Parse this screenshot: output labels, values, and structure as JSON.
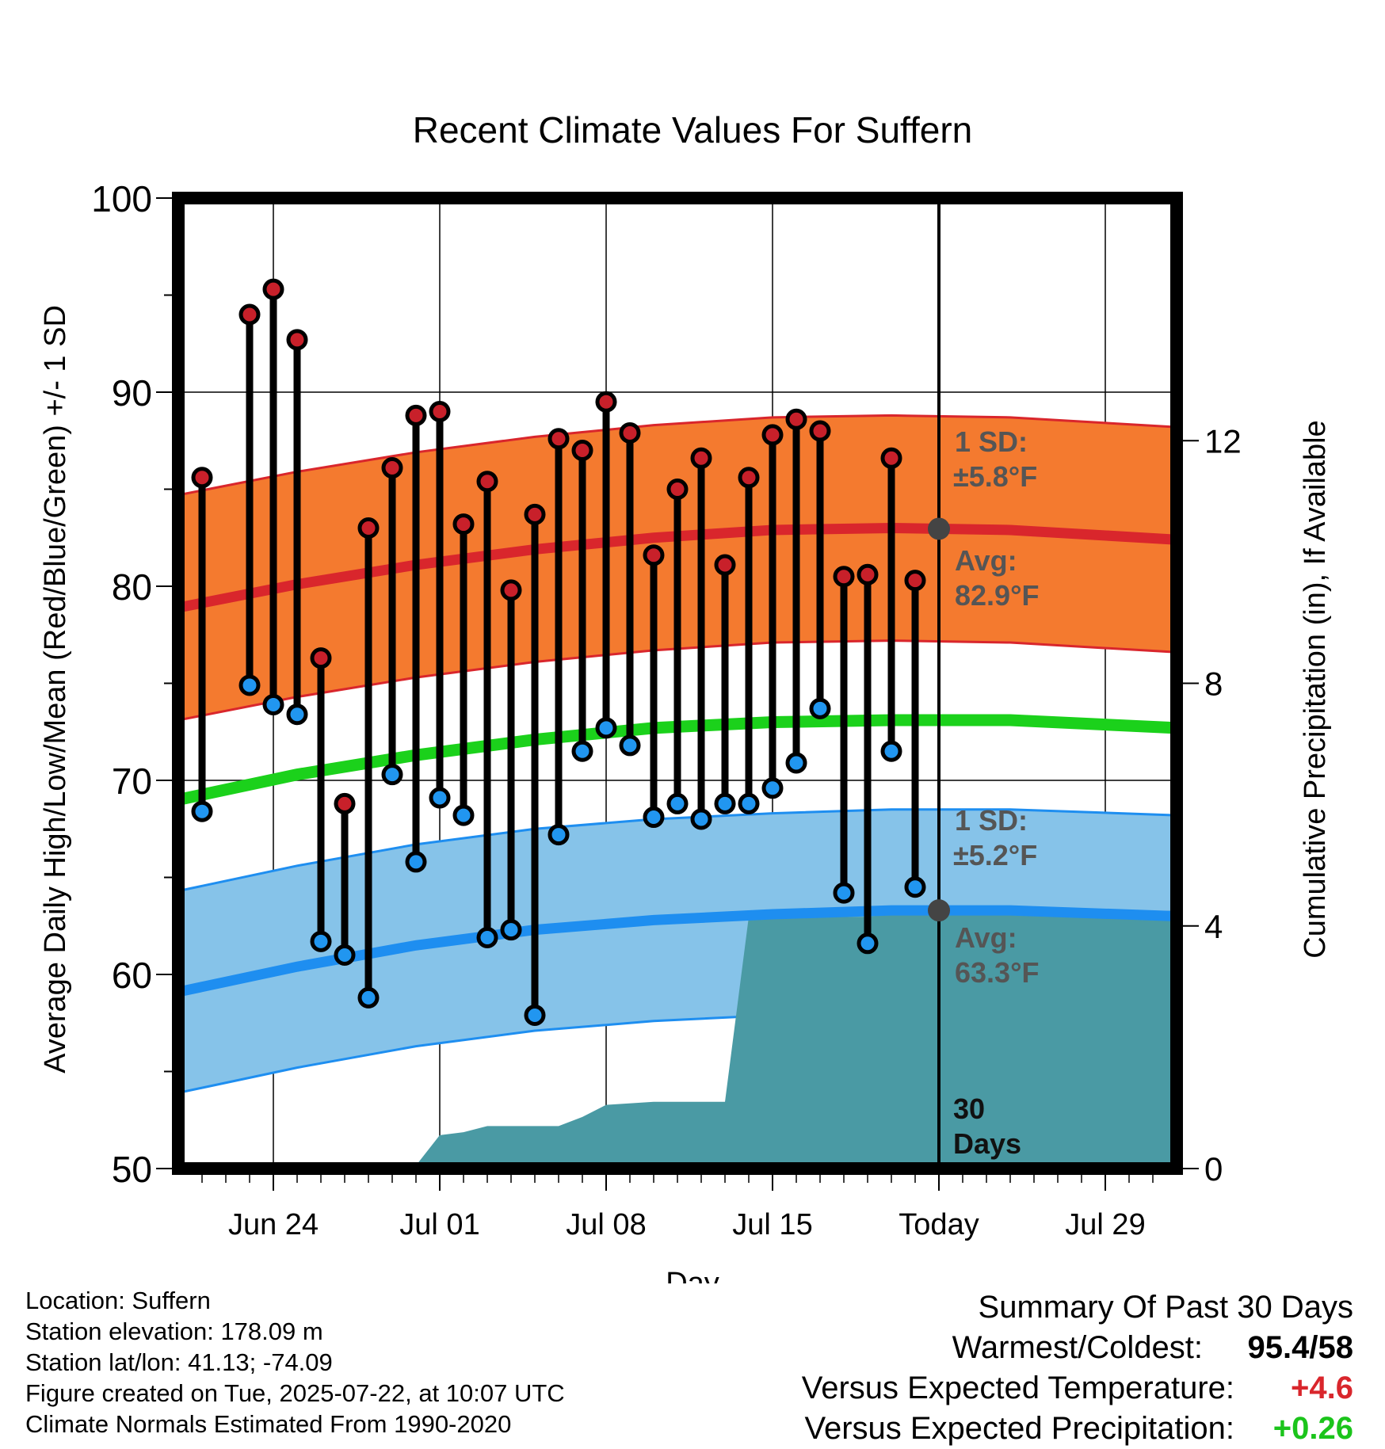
{
  "chart_data": {
    "type": "line",
    "title": "Recent Climate Values For Suffern",
    "xlabel": "Day",
    "ylabel": "Average Daily High/Low/Mean (Red/Blue/Green) +/- 1 SD",
    "ylabel_right": "Cumulative Precipitation (in), If Available",
    "ylim": [
      50,
      100
    ],
    "yticks": [
      50,
      60,
      70,
      80,
      90,
      100
    ],
    "ylim_right": [
      0,
      16
    ],
    "yticks_right": [
      0,
      4,
      8,
      12
    ],
    "x_range": [
      "2025-06-20",
      "2025-08-01"
    ],
    "x_tick_labels": [
      {
        "date": "2025-06-24",
        "label": "Jun 24"
      },
      {
        "date": "2025-07-01",
        "label": "Jul 01"
      },
      {
        "date": "2025-07-08",
        "label": "Jul 08"
      },
      {
        "date": "2025-07-15",
        "label": "Jul 15"
      },
      {
        "date": "2025-07-22",
        "label": "Today"
      },
      {
        "date": "2025-07-29",
        "label": "Jul 29"
      }
    ],
    "grid": true,
    "dates": [
      "2025-06-21",
      "2025-06-23",
      "2025-06-24",
      "2025-06-25",
      "2025-06-26",
      "2025-06-27",
      "2025-06-28",
      "2025-06-29",
      "2025-06-30",
      "2025-07-01",
      "2025-07-02",
      "2025-07-03",
      "2025-07-04",
      "2025-07-05",
      "2025-07-06",
      "2025-07-07",
      "2025-07-08",
      "2025-07-09",
      "2025-07-10",
      "2025-07-11",
      "2025-07-12",
      "2025-07-13",
      "2025-07-14",
      "2025-07-15",
      "2025-07-16",
      "2025-07-17",
      "2025-07-18",
      "2025-07-19",
      "2025-07-20",
      "2025-07-21"
    ],
    "series": [
      {
        "name": "High",
        "values": [
          85.6,
          94.0,
          95.3,
          92.7,
          76.3,
          68.8,
          83.0,
          86.1,
          88.8,
          89.0,
          83.2,
          85.4,
          79.8,
          83.7,
          87.6,
          87.0,
          89.5,
          87.9,
          81.6,
          85.0,
          86.6,
          81.1,
          85.6,
          87.8,
          88.6,
          88.0,
          80.5,
          80.6,
          86.6,
          80.3
        ]
      },
      {
        "name": "Low",
        "values": [
          68.4,
          74.9,
          73.9,
          73.4,
          61.7,
          61.0,
          58.8,
          70.3,
          65.8,
          69.1,
          68.2,
          61.9,
          62.3,
          57.9,
          67.2,
          71.5,
          72.7,
          71.8,
          68.1,
          68.8,
          68.0,
          68.8,
          68.8,
          69.6,
          70.9,
          73.7,
          64.2,
          61.6,
          71.5,
          64.5
        ]
      }
    ],
    "normals": {
      "dates": [
        "2025-06-20",
        "2025-06-25",
        "2025-06-30",
        "2025-07-05",
        "2025-07-10",
        "2025-07-15",
        "2025-07-20",
        "2025-07-25",
        "2025-08-01"
      ],
      "high_avg": [
        78.9,
        80.1,
        81.1,
        81.9,
        82.5,
        82.9,
        83.0,
        82.9,
        82.4
      ],
      "low_avg": [
        59.1,
        60.4,
        61.5,
        62.3,
        62.8,
        63.1,
        63.3,
        63.3,
        63.0
      ],
      "mean_avg": [
        69.0,
        70.3,
        71.3,
        72.1,
        72.7,
        73.0,
        73.1,
        73.1,
        72.7
      ],
      "high_sd": 5.8,
      "low_sd": 5.2
    },
    "precipitation": {
      "dates": [
        "2025-06-20",
        "2025-06-25",
        "2025-06-29",
        "2025-06-30",
        "2025-07-01",
        "2025-07-02",
        "2025-07-03",
        "2025-07-06",
        "2025-07-07",
        "2025-07-08",
        "2025-07-10",
        "2025-07-12",
        "2025-07-13",
        "2025-07-14",
        "2025-07-17",
        "2025-07-18",
        "2025-07-19",
        "2025-07-21",
        "2025-08-01"
      ],
      "values": [
        0.0,
        0.0,
        0.05,
        0.05,
        0.55,
        0.6,
        0.7,
        0.7,
        0.85,
        1.05,
        1.1,
        1.1,
        1.1,
        4.15,
        4.15,
        4.15,
        4.15,
        4.25,
        4.25
      ]
    },
    "annotations": {
      "high_sd_label": "1 SD:",
      "high_sd_value": "±5.8°F",
      "high_avg_label": "Avg:",
      "high_avg_value": "82.9°F",
      "low_sd_label": "1 SD:",
      "low_sd_value": "±5.2°F",
      "low_avg_label": "Avg:",
      "low_avg_value": "63.3°F",
      "window_label_1": "30",
      "window_label_2": "Days"
    },
    "colors": {
      "high_band": "#f47a2f",
      "high_line": "#d9262c",
      "low_band": "#86c3e9",
      "low_line": "#1e8ef0",
      "mean_line": "#1bd11b",
      "precip": "#4a9aa4",
      "high_dot": "#c8202a",
      "low_dot": "#2196f0",
      "today_dot": "#444444",
      "annotation": "#555555"
    }
  },
  "info": {
    "location": "Location: Suffern",
    "elevation": "Station elevation: 178.09 m",
    "latlon": "Station lat/lon: 41.13; -74.09",
    "created": "Figure created on Tue, 2025-07-22, at 10:07 UTC",
    "normals": "Climate Normals Estimated From 1990-2020"
  },
  "summary": {
    "title": "Summary Of Past 30 Days",
    "warm_cold_label": "Warmest/Coldest:",
    "warm_cold_value": "95.4/58",
    "temp_label": "Versus Expected Temperature:",
    "temp_value": "+4.6",
    "temp_color": "#d9262c",
    "precip_label": "Versus Expected Precipitation:",
    "precip_value": "+0.26",
    "precip_color": "#1bc41b"
  }
}
